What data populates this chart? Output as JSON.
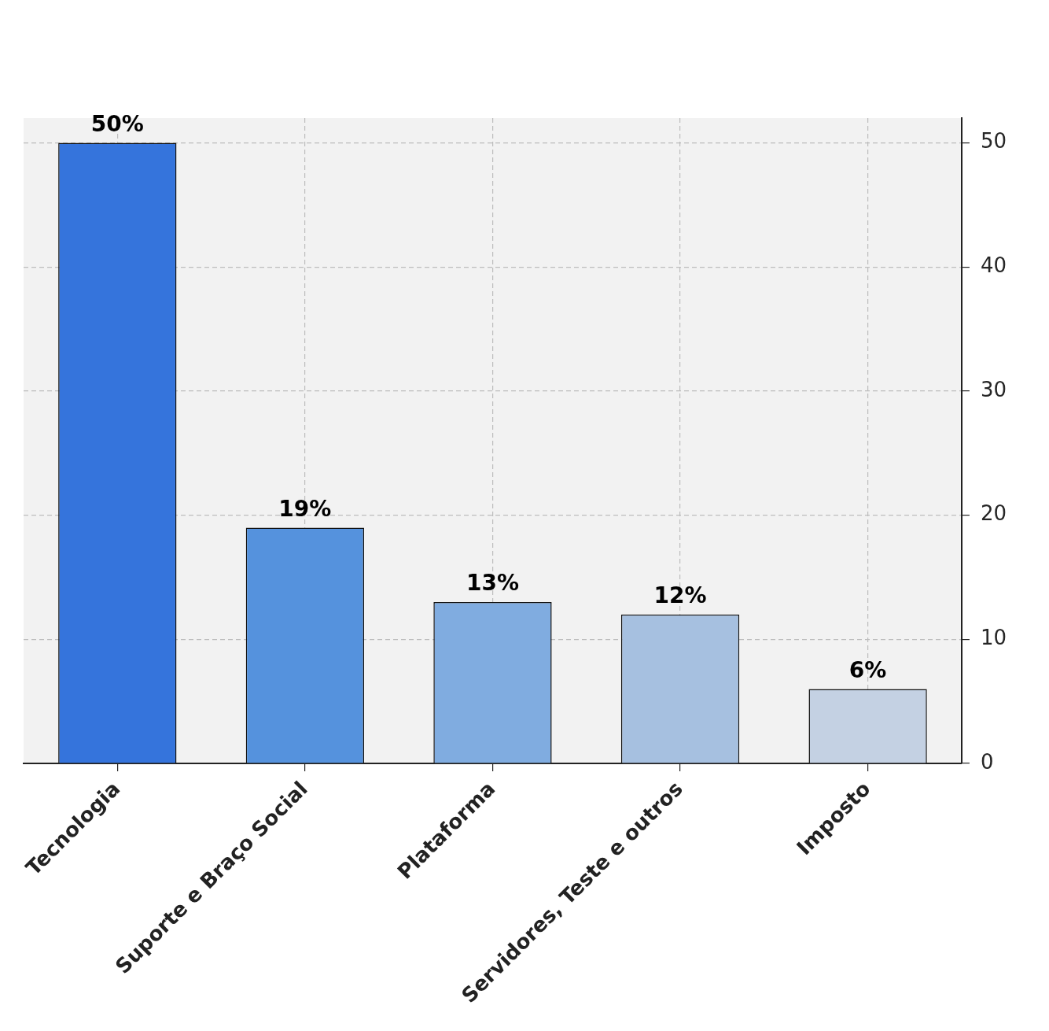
{
  "chart_data": {
    "type": "bar",
    "categories": [
      "Tecnologia",
      "Suporte e Braço Social",
      "Plataforma",
      "Servidores, Teste e outros",
      "Imposto"
    ],
    "values": [
      50,
      19,
      13,
      12,
      6
    ],
    "colors": [
      "#3574dc",
      "#5592dd",
      "#80ace0",
      "#a6c0e0",
      "#c4d1e3"
    ],
    "value_labels": [
      "50%",
      "19%",
      "13%",
      "12%",
      "6%"
    ],
    "ylim": [
      0,
      52
    ],
    "yticks": [
      0,
      10,
      20,
      30,
      40,
      50
    ],
    "grid": true
  }
}
